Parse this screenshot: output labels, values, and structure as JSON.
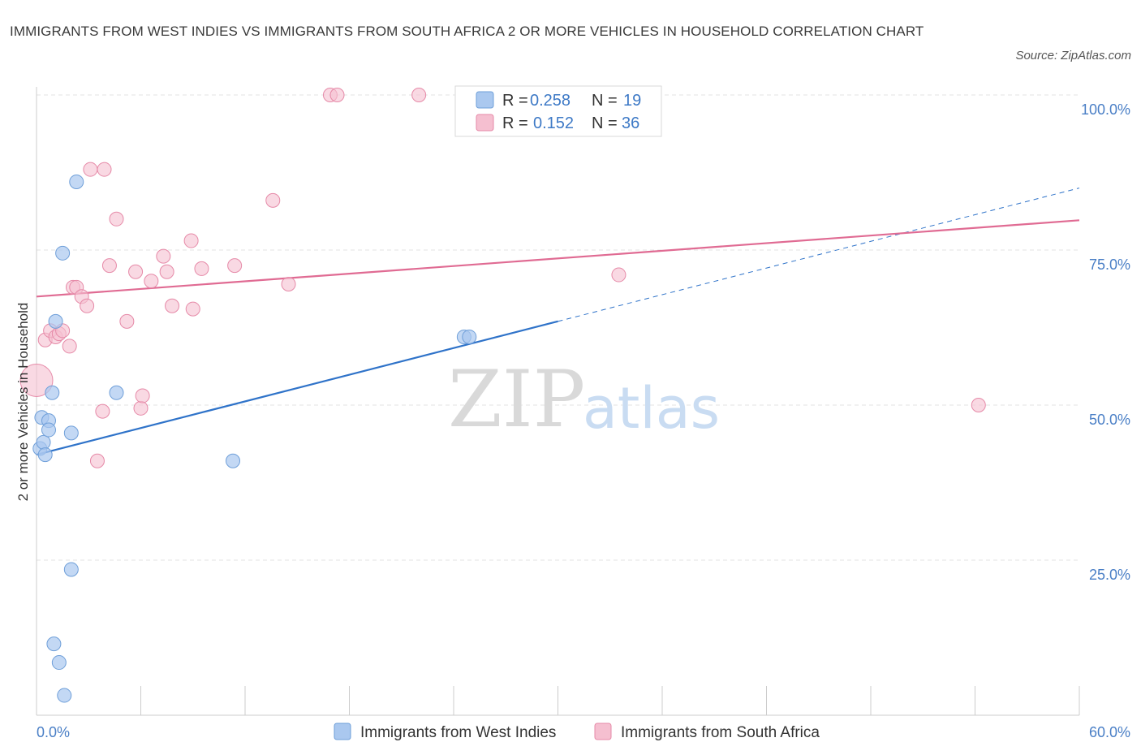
{
  "title": "IMMIGRANTS FROM WEST INDIES VS IMMIGRANTS FROM SOUTH AFRICA 2 OR MORE VEHICLES IN HOUSEHOLD CORRELATION CHART",
  "source": "Source: ZipAtlas.com",
  "watermark": {
    "zip": "ZIP",
    "atlas": "atlas"
  },
  "colors": {
    "blue_fill": "#aac8ef",
    "blue_stroke": "#6f9fd9",
    "blue_line": "#2f73c9",
    "pink_fill": "#f5bfd0",
    "pink_stroke": "#e68aa8",
    "pink_line": "#e06b93",
    "grid": "#e3e3e3",
    "axis_text": "#4a7fc6"
  },
  "chart_data": {
    "type": "scatter",
    "xlabel": "",
    "ylabel": "2 or more Vehicles in Household",
    "xlim": [
      0,
      60
    ],
    "ylim": [
      0,
      100
    ],
    "x_tick_labels": [
      "0.0%",
      "60.0%"
    ],
    "y_ticks": [
      25,
      50,
      75,
      100
    ],
    "y_tick_labels": [
      "25.0%",
      "50.0%",
      "75.0%",
      "100.0%"
    ],
    "legend_top": [
      {
        "r_label": "R =",
        "r_value": "0.258",
        "n_label": "N =",
        "n_value": "19"
      },
      {
        "r_label": "R =",
        "r_value": "0.152",
        "n_label": "N =",
        "n_value": "36"
      }
    ],
    "series": [
      {
        "name": "Immigrants from West Indies",
        "color": "blue",
        "points": [
          [
            0.3,
            48
          ],
          [
            0.2,
            43
          ],
          [
            0.4,
            44
          ],
          [
            0.5,
            42
          ],
          [
            0.7,
            47.5
          ],
          [
            0.7,
            46
          ],
          [
            0.9,
            52
          ],
          [
            1.1,
            63.5
          ],
          [
            1.5,
            74.5
          ],
          [
            2.3,
            86
          ],
          [
            2.0,
            45.5
          ],
          [
            4.6,
            52
          ],
          [
            11.3,
            41
          ],
          [
            24.6,
            61
          ],
          [
            24.9,
            61
          ],
          [
            2.0,
            23.5
          ],
          [
            1.0,
            11.5
          ],
          [
            1.3,
            8.5
          ],
          [
            1.6,
            3.2
          ]
        ],
        "trend": {
          "x0": 0,
          "y0": 42,
          "x1": 30,
          "y1": 63.5
        },
        "trend_dashed": {
          "x0": 30,
          "y0": 63.5,
          "x1": 60,
          "y1": 85
        }
      },
      {
        "name": "Immigrants from South Africa",
        "color": "pink",
        "points": [
          [
            0,
            54
          ],
          [
            0.5,
            60.5
          ],
          [
            0.8,
            62
          ],
          [
            1.1,
            61
          ],
          [
            1.3,
            61.5
          ],
          [
            1.5,
            62
          ],
          [
            1.9,
            59.5
          ],
          [
            2.1,
            69
          ],
          [
            2.3,
            69
          ],
          [
            2.6,
            67.5
          ],
          [
            2.9,
            66
          ],
          [
            3.1,
            88
          ],
          [
            3.9,
            88
          ],
          [
            4.2,
            72.5
          ],
          [
            4.6,
            80
          ],
          [
            5.2,
            63.5
          ],
          [
            5.7,
            71.5
          ],
          [
            6.0,
            49.5
          ],
          [
            6.1,
            51.5
          ],
          [
            6.6,
            70
          ],
          [
            7.3,
            74
          ],
          [
            7.5,
            71.5
          ],
          [
            7.8,
            66
          ],
          [
            8.9,
            76.5
          ],
          [
            9.0,
            65.5
          ],
          [
            9.5,
            72
          ],
          [
            11.4,
            72.5
          ],
          [
            13.6,
            83
          ],
          [
            14.5,
            69.5
          ],
          [
            16.9,
            100
          ],
          [
            17.3,
            100
          ],
          [
            22.0,
            100
          ],
          [
            3.5,
            41
          ],
          [
            3.8,
            49
          ],
          [
            33.5,
            71
          ],
          [
            54.2,
            50
          ]
        ],
        "trend": {
          "x0": 0,
          "y0": 67.5,
          "x1": 60,
          "y1": 79.8
        }
      }
    ]
  }
}
